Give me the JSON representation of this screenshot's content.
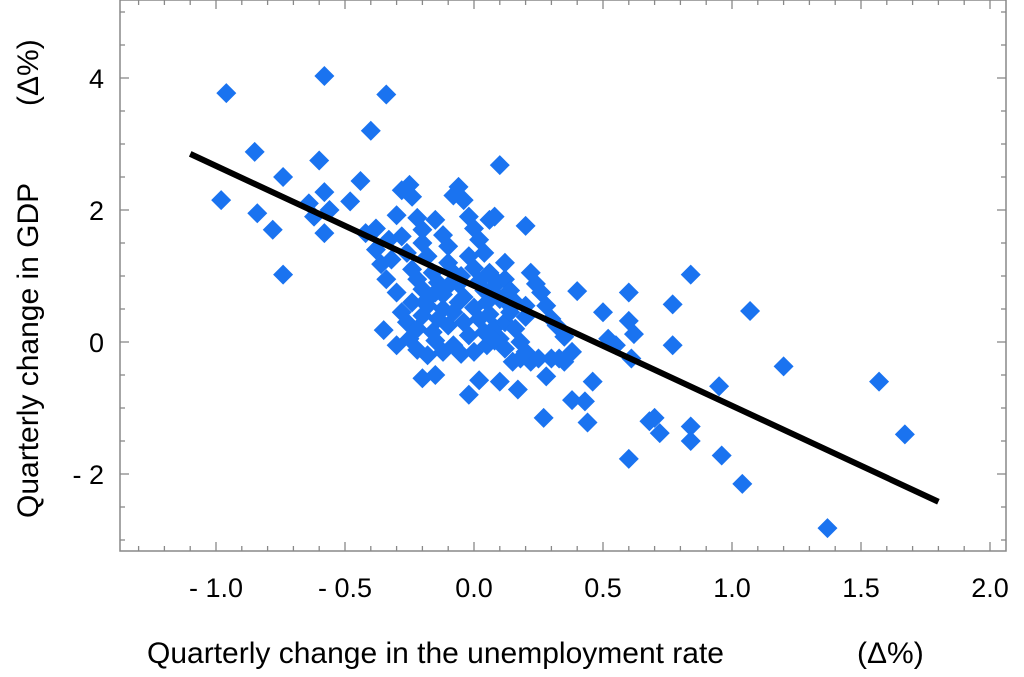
{
  "chart_data": {
    "type": "scatter",
    "xlabel": "Quarterly change in the unemployment rate",
    "xlabel_unit": "(Δ%)",
    "ylabel": "Quarterly change in GDP",
    "ylabel_unit": "(Δ%)",
    "xlim": [
      -1.4,
      2.1
    ],
    "ylim": [
      -3.2,
      5.2
    ],
    "x_ticks": [
      {
        "value": -1.0,
        "label": "- 1.0"
      },
      {
        "value": -0.5,
        "label": "- 0.5"
      },
      {
        "value": 0.0,
        "label": "0.0"
      },
      {
        "value": 0.5,
        "label": "0.5"
      },
      {
        "value": 1.0,
        "label": "1.0"
      },
      {
        "value": 1.5,
        "label": "1.5"
      },
      {
        "value": 2.0,
        "label": "2.0"
      }
    ],
    "y_ticks": [
      {
        "value": -2,
        "label": "- 2"
      },
      {
        "value": 0,
        "label": "0"
      },
      {
        "value": 2,
        "label": "2"
      },
      {
        "value": 4,
        "label": "4"
      }
    ],
    "grid": false,
    "marker_color": "#1a73f0",
    "line_color": "#000000",
    "trend_line": {
      "x": [
        -1.1,
        1.8
      ],
      "y": [
        2.85,
        -2.42
      ]
    },
    "points": [
      [
        -0.96,
        3.77
      ],
      [
        -0.58,
        4.03
      ],
      [
        -0.34,
        3.75
      ],
      [
        -0.4,
        3.2
      ],
      [
        -0.85,
        2.88
      ],
      [
        -0.6,
        2.75
      ],
      [
        -0.74,
        2.5
      ],
      [
        -0.98,
        2.15
      ],
      [
        -0.84,
        1.95
      ],
      [
        -0.78,
        1.7
      ],
      [
        -0.74,
        1.02
      ],
      [
        -0.64,
        2.1
      ],
      [
        -0.62,
        1.9
      ],
      [
        -0.58,
        2.27
      ],
      [
        -0.56,
        2.0
      ],
      [
        -0.58,
        1.65
      ],
      [
        -0.48,
        2.13
      ],
      [
        -0.44,
        2.44
      ],
      [
        -0.42,
        1.65
      ],
      [
        -0.38,
        1.72
      ],
      [
        -0.38,
        1.4
      ],
      [
        -0.36,
        1.18
      ],
      [
        -0.34,
        0.95
      ],
      [
        -0.33,
        1.55
      ],
      [
        -0.3,
        1.92
      ],
      [
        -0.28,
        2.3
      ],
      [
        -0.25,
        2.38
      ],
      [
        -0.24,
        2.2
      ],
      [
        -0.22,
        1.88
      ],
      [
        -0.2,
        1.7
      ],
      [
        -0.2,
        1.5
      ],
      [
        -0.18,
        1.3
      ],
      [
        -0.15,
        1.85
      ],
      [
        -0.12,
        1.62
      ],
      [
        -0.1,
        1.45
      ],
      [
        -0.08,
        2.22
      ],
      [
        -0.06,
        2.35
      ],
      [
        -0.04,
        2.15
      ],
      [
        -0.02,
        1.9
      ],
      [
        0.0,
        1.72
      ],
      [
        0.02,
        1.55
      ],
      [
        0.04,
        1.35
      ],
      [
        0.06,
        1.85
      ],
      [
        0.08,
        1.9
      ],
      [
        0.1,
        2.68
      ],
      [
        -0.28,
        1.6
      ],
      [
        -0.26,
        1.35
      ],
      [
        -0.24,
        1.1
      ],
      [
        -0.22,
        0.95
      ],
      [
        -0.2,
        0.8
      ],
      [
        -0.18,
        0.65
      ],
      [
        -0.16,
        1.05
      ],
      [
        -0.14,
        0.9
      ],
      [
        -0.12,
        0.72
      ],
      [
        -0.1,
        1.2
      ],
      [
        -0.08,
        1.05
      ],
      [
        -0.06,
        0.88
      ],
      [
        -0.04,
        0.68
      ],
      [
        -0.02,
        1.3
      ],
      [
        0.0,
        1.12
      ],
      [
        0.02,
        0.92
      ],
      [
        0.04,
        0.78
      ],
      [
        0.06,
        1.05
      ],
      [
        0.08,
        0.85
      ],
      [
        0.1,
        0.65
      ],
      [
        0.12,
        0.95
      ],
      [
        0.14,
        0.78
      ],
      [
        0.16,
        0.6
      ],
      [
        -0.3,
        0.75
      ],
      [
        -0.28,
        0.45
      ],
      [
        -0.26,
        0.3
      ],
      [
        -0.24,
        0.6
      ],
      [
        -0.22,
        0.2
      ],
      [
        -0.2,
        0.4
      ],
      [
        -0.18,
        0.55
      ],
      [
        -0.16,
        0.15
      ],
      [
        -0.14,
        0.35
      ],
      [
        -0.12,
        0.5
      ],
      [
        -0.1,
        0.25
      ],
      [
        -0.08,
        0.45
      ],
      [
        -0.06,
        0.6
      ],
      [
        -0.04,
        0.3
      ],
      [
        -0.02,
        0.1
      ],
      [
        0.0,
        0.52
      ],
      [
        0.02,
        0.35
      ],
      [
        0.04,
        0.15
      ],
      [
        0.06,
        0.42
      ],
      [
        0.08,
        0.22
      ],
      [
        0.1,
        0.05
      ],
      [
        0.12,
        0.3
      ],
      [
        0.14,
        0.45
      ],
      [
        0.16,
        0.2
      ],
      [
        0.18,
        0.0
      ],
      [
        0.2,
        0.38
      ],
      [
        -0.35,
        0.18
      ],
      [
        -0.3,
        -0.05
      ],
      [
        -0.25,
        0.05
      ],
      [
        -0.22,
        -0.12
      ],
      [
        -0.18,
        -0.2
      ],
      [
        -0.15,
        0.02
      ],
      [
        -0.12,
        -0.15
      ],
      [
        -0.08,
        -0.05
      ],
      [
        -0.05,
        -0.18
      ],
      [
        0.0,
        -0.15
      ],
      [
        0.05,
        -0.05
      ],
      [
        0.08,
        0.02
      ],
      [
        0.12,
        -0.1
      ],
      [
        0.15,
        -0.3
      ],
      [
        0.18,
        -0.25
      ],
      [
        0.2,
        -0.15
      ],
      [
        -0.2,
        -0.55
      ],
      [
        -0.15,
        -0.5
      ],
      [
        -0.02,
        -0.8
      ],
      [
        0.02,
        -0.58
      ],
      [
        0.1,
        -0.6
      ],
      [
        0.17,
        -0.72
      ],
      [
        0.22,
        -0.3
      ],
      [
        0.25,
        -0.25
      ],
      [
        0.28,
        -0.52
      ],
      [
        0.3,
        -0.25
      ],
      [
        0.33,
        -0.25
      ],
      [
        0.35,
        -0.3
      ],
      [
        0.38,
        -0.15
      ],
      [
        0.38,
        -0.88
      ],
      [
        0.43,
        -0.9
      ],
      [
        0.44,
        -1.22
      ],
      [
        0.27,
        -1.15
      ],
      [
        0.46,
        -0.6
      ],
      [
        0.2,
        1.76
      ],
      [
        0.22,
        1.05
      ],
      [
        0.24,
        0.88
      ],
      [
        0.26,
        0.75
      ],
      [
        0.28,
        0.55
      ],
      [
        0.3,
        0.35
      ],
      [
        0.32,
        0.25
      ],
      [
        0.35,
        0.08
      ],
      [
        0.4,
        0.77
      ],
      [
        0.5,
        0.45
      ],
      [
        0.52,
        0.05
      ],
      [
        0.55,
        -0.05
      ],
      [
        0.6,
        0.75
      ],
      [
        0.6,
        0.32
      ],
      [
        0.62,
        0.12
      ],
      [
        0.61,
        -0.25
      ],
      [
        0.68,
        -1.2
      ],
      [
        0.7,
        -1.15
      ],
      [
        0.72,
        -1.38
      ],
      [
        0.77,
        0.57
      ],
      [
        0.77,
        -0.05
      ],
      [
        0.84,
        1.02
      ],
      [
        0.84,
        -1.28
      ],
      [
        0.84,
        -1.5
      ],
      [
        0.95,
        -0.67
      ],
      [
        0.96,
        -1.72
      ],
      [
        1.04,
        -2.15
      ],
      [
        1.07,
        0.47
      ],
      [
        1.2,
        -0.37
      ],
      [
        1.37,
        -2.82
      ],
      [
        1.57,
        -0.6
      ],
      [
        1.67,
        -1.4
      ],
      [
        0.6,
        -1.77
      ],
      [
        0.08,
        0.95
      ],
      [
        0.12,
        1.2
      ],
      [
        -0.05,
        1.0
      ],
      [
        -0.15,
        0.75
      ],
      [
        -0.32,
        1.25
      ],
      [
        0.05,
        0.6
      ],
      [
        -0.1,
        0.85
      ],
      [
        0.14,
        0.55
      ],
      [
        0.2,
        0.55
      ]
    ]
  }
}
